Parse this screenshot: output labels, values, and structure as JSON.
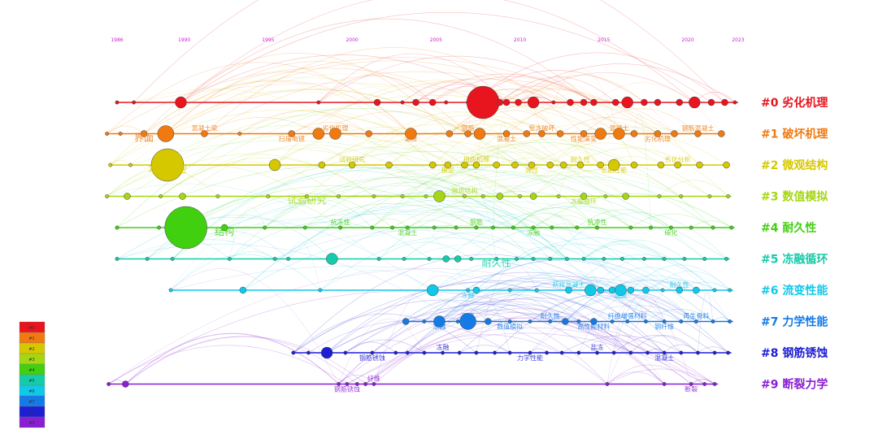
{
  "chart_data": {
    "type": "timeline",
    "x_ticks": [
      1986,
      1990,
      1995,
      2000,
      2005,
      2010,
      2015,
      2020,
      2023
    ],
    "xlim": [
      1986,
      2023
    ],
    "clusters": [
      {
        "id": "#0",
        "name": "劣化机理",
        "color": "#e8141e",
        "nodes": [
          [
            1986,
            1
          ],
          [
            1987,
            1
          ],
          [
            1989.8,
            3
          ],
          [
            1998,
            1
          ],
          [
            2001.5,
            2
          ],
          [
            2003,
            1
          ],
          [
            2003.8,
            2
          ],
          [
            2004.8,
            2
          ],
          [
            2005.6,
            1
          ],
          [
            2007,
            2
          ],
          [
            2007.8,
            5
          ],
          [
            2008.8,
            2
          ],
          [
            2009.2,
            2
          ],
          [
            2009.9,
            2
          ],
          [
            2010.8,
            3
          ],
          [
            2012,
            1
          ],
          [
            2013,
            2
          ],
          [
            2013.8,
            2
          ],
          [
            2014.4,
            2
          ],
          [
            2015.7,
            2
          ],
          [
            2016.4,
            3
          ],
          [
            2017.4,
            2
          ],
          [
            2018.2,
            2
          ],
          [
            2019.5,
            2
          ],
          [
            2020.4,
            3
          ],
          [
            2021.4,
            2
          ],
          [
            2022.2,
            2
          ],
          [
            2022.8,
            1
          ]
        ],
        "labels": []
      },
      {
        "id": "#1",
        "name": "破坏机理",
        "color": "#f07a10",
        "nodes": [
          [
            1985.4,
            1
          ],
          [
            1986.2,
            1
          ],
          [
            1987.6,
            2
          ],
          [
            1988.9,
            4
          ],
          [
            1991.2,
            2
          ],
          [
            1993.3,
            1
          ],
          [
            1996.4,
            2
          ],
          [
            1998,
            3
          ],
          [
            1999,
            3
          ],
          [
            2001,
            2
          ],
          [
            2003.5,
            3
          ],
          [
            2005.8,
            2
          ],
          [
            2006.9,
            2
          ],
          [
            2007.6,
            3
          ],
          [
            2009.2,
            2
          ],
          [
            2010.4,
            2
          ],
          [
            2011.3,
            2
          ],
          [
            2012.4,
            2
          ],
          [
            2013.8,
            2
          ],
          [
            2014.8,
            3
          ],
          [
            2015.9,
            3
          ],
          [
            2016.8,
            2
          ],
          [
            2018.2,
            2
          ],
          [
            2019.2,
            2
          ],
          [
            2020.6,
            2
          ],
          [
            2022,
            2
          ]
        ],
        "labels": [
          "界面",
          "混凝土梁",
          "扫描电镜",
          "劣化机理",
          "温度",
          "钢筋",
          "混凝土",
          "受冻破坏",
          "性能演变",
          "混凝土",
          "劣化机理",
          "钢筋混凝土"
        ]
      },
      {
        "id": "#2",
        "name": "微观结构",
        "color": "#d6c800",
        "nodes": [
          [
            1985.6,
            1
          ],
          [
            1986.8,
            1
          ],
          [
            1989,
            5
          ],
          [
            1995.4,
            3
          ],
          [
            1998.2,
            2
          ],
          [
            2000,
            2
          ],
          [
            2002.2,
            2
          ],
          [
            2004.8,
            2
          ],
          [
            2005.7,
            2
          ],
          [
            2006.7,
            2
          ],
          [
            2007.4,
            2
          ],
          [
            2008.6,
            2
          ],
          [
            2009.7,
            2
          ],
          [
            2010.7,
            2
          ],
          [
            2011.8,
            2
          ],
          [
            2012.6,
            2
          ],
          [
            2013.6,
            2
          ],
          [
            2014.8,
            2
          ],
          [
            2015.6,
            3
          ],
          [
            2016.8,
            2
          ],
          [
            2018.4,
            2
          ],
          [
            2019.4,
            2
          ],
          [
            2020.7,
            2
          ],
          [
            2022.3,
            2
          ]
        ],
        "labels": [
          "本构模型",
          "试验研究",
          "模型",
          "损伤机理",
          "弹性",
          "耐久性",
          "长期性能",
          "劣化分析"
        ]
      },
      {
        "id": "#3",
        "name": "数值模拟",
        "color": "#a6d613",
        "nodes": [
          [
            1985.4,
            1
          ],
          [
            1986.6,
            2
          ],
          [
            1988.6,
            1
          ],
          [
            1989.9,
            2
          ],
          [
            1992,
            1
          ],
          [
            1995,
            1
          ],
          [
            1997.3,
            1
          ],
          [
            1999.2,
            1
          ],
          [
            2001.3,
            1
          ],
          [
            2003,
            1
          ],
          [
            2004.4,
            1
          ],
          [
            2005.2,
            3
          ],
          [
            2006.7,
            1
          ],
          [
            2007.8,
            1
          ],
          [
            2008.8,
            2
          ],
          [
            2010,
            1
          ],
          [
            2010.8,
            2
          ],
          [
            2012.3,
            1
          ],
          [
            2013.8,
            2
          ],
          [
            2015.1,
            1
          ],
          [
            2016.3,
            2
          ],
          [
            2018.3,
            1
          ],
          [
            2019.6,
            1
          ],
          [
            2021.3,
            1
          ],
          [
            2022.4,
            1
          ]
        ],
        "labels": [
          "试验研究",
          "微观结构",
          "冻融循环"
        ]
      },
      {
        "id": "#4",
        "name": "耐久性",
        "color": "#40d010",
        "nodes": [
          [
            1986,
            1
          ],
          [
            1988.5,
            1
          ],
          [
            1990.1,
            6
          ],
          [
            1992.4,
            2
          ],
          [
            1994.8,
            1
          ],
          [
            1997.2,
            1
          ],
          [
            1999.3,
            1
          ],
          [
            2001.2,
            1
          ],
          [
            2002.4,
            1
          ],
          [
            2003.3,
            1
          ],
          [
            2004.9,
            1
          ],
          [
            2006.2,
            1
          ],
          [
            2007.4,
            1
          ],
          [
            2008.4,
            1
          ],
          [
            2009.6,
            1
          ],
          [
            2010.8,
            1
          ],
          [
            2011.9,
            1
          ],
          [
            2013.4,
            1
          ],
          [
            2014.6,
            1
          ],
          [
            2016.6,
            1
          ],
          [
            2017.8,
            1
          ],
          [
            2019,
            1
          ],
          [
            2020.2,
            1
          ],
          [
            2021.5,
            1
          ],
          [
            2022.6,
            1
          ]
        ],
        "labels": [
          "结构",
          "抗冻性",
          "混凝土",
          "钢筋",
          "冻融",
          "抗渗性",
          "碳化"
        ]
      },
      {
        "id": "#5",
        "name": "冻融循环",
        "color": "#14ccaa",
        "nodes": [
          [
            1986,
            1
          ],
          [
            1987.8,
            1
          ],
          [
            1989.3,
            1
          ],
          [
            1992.7,
            1
          ],
          [
            1995.4,
            1
          ],
          [
            1996.2,
            1
          ],
          [
            1998.8,
            3
          ],
          [
            2001.6,
            1
          ],
          [
            2003.1,
            1
          ],
          [
            2004.6,
            1
          ],
          [
            2005.6,
            2
          ],
          [
            2006.3,
            2
          ],
          [
            2007.1,
            1
          ],
          [
            2008.6,
            1
          ],
          [
            2009.8,
            1
          ],
          [
            2010.8,
            1
          ],
          [
            2011.8,
            1
          ],
          [
            2012.8,
            1
          ],
          [
            2013.8,
            1
          ],
          [
            2015,
            1
          ],
          [
            2016.1,
            1
          ],
          [
            2017.4,
            1
          ],
          [
            2018.6,
            1
          ],
          [
            2019.8,
            1
          ],
          [
            2021,
            1
          ],
          [
            2022.3,
            1
          ]
        ],
        "labels": [
          "耐久性"
        ]
      },
      {
        "id": "#6",
        "name": "流变性能",
        "color": "#10c8e8",
        "nodes": [
          [
            1989.2,
            1
          ],
          [
            1993.5,
            2
          ],
          [
            1998.1,
            1
          ],
          [
            2004.8,
            3
          ],
          [
            2006.9,
            1
          ],
          [
            2007.4,
            2
          ],
          [
            2009.4,
            1
          ],
          [
            2011,
            1
          ],
          [
            2012.9,
            2
          ],
          [
            2014.2,
            3
          ],
          [
            2014.8,
            2
          ],
          [
            2015.5,
            2
          ],
          [
            2016,
            3
          ],
          [
            2016.6,
            2
          ],
          [
            2017.5,
            2
          ],
          [
            2018.5,
            1
          ],
          [
            2019.5,
            2
          ],
          [
            2020.5,
            2
          ],
          [
            2021.6,
            1
          ],
          [
            2022.5,
            1
          ]
        ],
        "labels": [
          "冻融",
          "新拌混凝土",
          "流变",
          "耐久性"
        ]
      },
      {
        "id": "#7",
        "name": "力学性能",
        "color": "#147ae6",
        "nodes": [
          [
            2003.2,
            2
          ],
          [
            2004.3,
            1
          ],
          [
            2005.2,
            3
          ],
          [
            2006.3,
            1
          ],
          [
            2006.9,
            4
          ],
          [
            2008.1,
            2
          ],
          [
            2009.4,
            1
          ],
          [
            2010.6,
            1
          ],
          [
            2011.8,
            1
          ],
          [
            2012.7,
            2
          ],
          [
            2013.5,
            1
          ],
          [
            2014.4,
            2
          ],
          [
            2015.5,
            1
          ],
          [
            2016.4,
            1
          ],
          [
            2017.5,
            1
          ],
          [
            2018.6,
            1
          ],
          [
            2019.6,
            1
          ],
          [
            2020.5,
            1
          ],
          [
            2021.5,
            1
          ],
          [
            2022.5,
            1
          ]
        ],
        "labels": [
          "冻融",
          "强度",
          "数值模拟",
          "耐久性",
          "高性能材料",
          "纤维增强材料",
          "钢纤维",
          "再生骨料"
        ]
      },
      {
        "id": "#8",
        "name": "钢筋锈蚀",
        "color": "#1e1ed2",
        "nodes": [
          [
            1996.5,
            1
          ],
          [
            1997.4,
            1
          ],
          [
            1998.5,
            3
          ],
          [
            1999.6,
            1
          ],
          [
            2001.2,
            1
          ],
          [
            2002.6,
            1
          ],
          [
            2003.3,
            1
          ],
          [
            2004.3,
            1
          ],
          [
            2005.4,
            1
          ],
          [
            2006.4,
            1
          ],
          [
            2007.4,
            1
          ],
          [
            2008.5,
            1
          ],
          [
            2009.4,
            1
          ],
          [
            2010.6,
            1
          ],
          [
            2011.6,
            1
          ],
          [
            2012.5,
            1
          ],
          [
            2013.5,
            1
          ],
          [
            2014.6,
            1
          ],
          [
            2015.6,
            1
          ],
          [
            2016.6,
            1
          ],
          [
            2017.6,
            1
          ],
          [
            2018.6,
            1
          ],
          [
            2019.6,
            1
          ],
          [
            2020.6,
            1
          ],
          [
            2021.6,
            1
          ],
          [
            2022.4,
            1
          ]
        ],
        "labels": [
          "钢筋锈蚀",
          "冻融",
          "力学性能",
          "盐冻",
          "混凝土"
        ]
      },
      {
        "id": "#9",
        "name": "断裂力学",
        "color": "#8a1ed2",
        "nodes": [
          [
            1985.5,
            1
          ],
          [
            1986.5,
            2
          ],
          [
            1999.2,
            1
          ],
          [
            1999.7,
            1
          ],
          [
            2000.3,
            1
          ],
          [
            2000.8,
            1
          ],
          [
            2001.3,
            1
          ],
          [
            2015.2,
            1
          ],
          [
            2018.6,
            1
          ],
          [
            2020.2,
            1
          ],
          [
            2021,
            1
          ],
          [
            2021.6,
            1
          ]
        ],
        "labels": [
          "钢筋锈蚀",
          "纤维",
          "断裂"
        ]
      }
    ],
    "legend_rows": [
      "#0",
      "#1",
      "#2",
      "#3",
      "#4",
      "#5",
      "#6",
      "#7",
      "#8",
      "#9"
    ]
  }
}
